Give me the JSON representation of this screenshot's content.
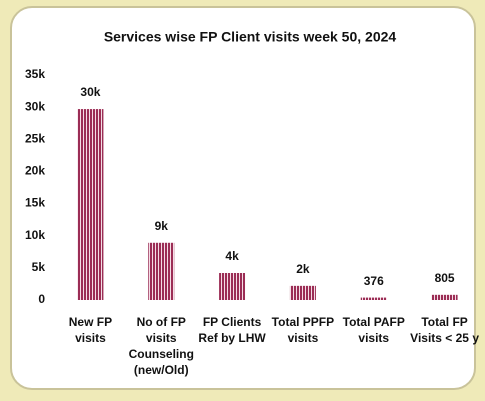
{
  "chart_data": {
    "type": "bar",
    "title": "Services wise FP Client visits week 50, 2024",
    "categories": [
      "New FP visits",
      "No of FP visits Counseling (new/Old)",
      "FP Clients Ref by LHW",
      "Total PPFP visits",
      "Total PAFP visits",
      "Total FP Visits < 25 y"
    ],
    "values": [
      29700,
      8900,
      4200,
      2200,
      376,
      805
    ],
    "value_labels": [
      "30k",
      "9k",
      "4k",
      "2k",
      "376",
      "805"
    ],
    "color": "#9b2d55",
    "ylim": [
      0,
      35000
    ],
    "yticks": [
      0,
      {
        "value": 5000,
        "label": "5k"
      },
      {
        "value": 10000,
        "label": "10k"
      },
      {
        "value": 15000,
        "label": "15k"
      },
      {
        "value": 20000,
        "label": "20k"
      },
      {
        "value": 25000,
        "label": "25k"
      },
      {
        "value": 30000,
        "label": "30k"
      },
      {
        "value": 35000,
        "label": "35k"
      }
    ],
    "grid": false
  }
}
